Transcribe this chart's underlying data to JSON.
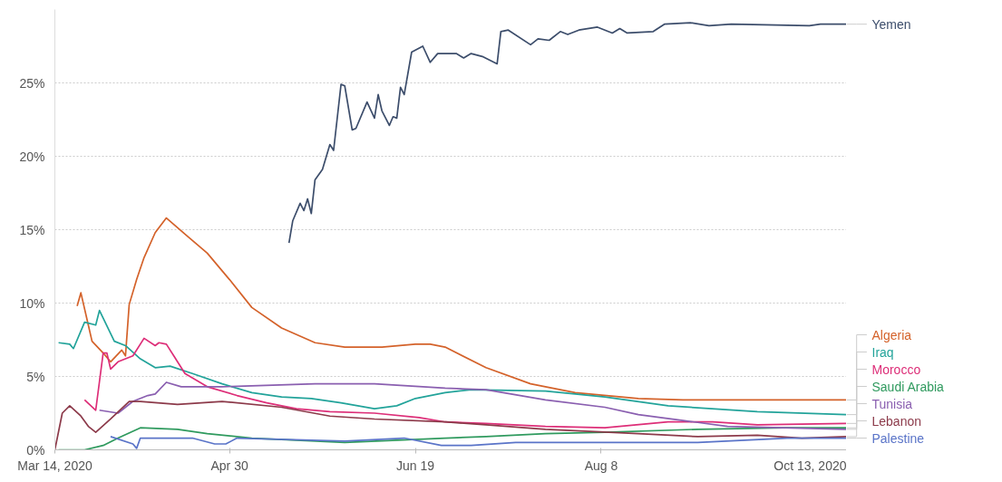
{
  "chart_data": {
    "type": "line",
    "xlim": [
      "2020-03-14",
      "2020-10-13"
    ],
    "xticks": [
      {
        "value": "2020-03-14",
        "label": "Mar 14, 2020"
      },
      {
        "value": "2020-04-30",
        "label": "Apr 30"
      },
      {
        "value": "2020-06-19",
        "label": "Jun 19"
      },
      {
        "value": "2020-08-08",
        "label": "Aug 8"
      },
      {
        "value": "2020-10-13",
        "label": "Oct 13, 2020"
      }
    ],
    "ylim": [
      0,
      30
    ],
    "yticks": [
      {
        "value": 0,
        "label": "0%"
      },
      {
        "value": 5,
        "label": "5%"
      },
      {
        "value": 10,
        "label": "10%"
      },
      {
        "value": 15,
        "label": "15%"
      },
      {
        "value": 20,
        "label": "20%"
      },
      {
        "value": 25,
        "label": "25%"
      }
    ],
    "grid": "y",
    "line_style": "solid",
    "series": [
      {
        "name": "Yemen",
        "color": "#3c4d6b",
        "x": [
          "2020-05-16",
          "2020-05-17",
          "2020-05-19",
          "2020-05-20",
          "2020-05-21",
          "2020-05-22",
          "2020-05-23",
          "2020-05-25",
          "2020-05-27",
          "2020-05-28",
          "2020-05-30",
          "2020-05-31",
          "2020-06-02",
          "2020-06-03",
          "2020-06-06",
          "2020-06-08",
          "2020-06-09",
          "2020-06-10",
          "2020-06-12",
          "2020-06-13",
          "2020-06-14",
          "2020-06-15",
          "2020-06-16",
          "2020-06-18",
          "2020-06-21",
          "2020-06-23",
          "2020-06-25",
          "2020-06-30",
          "2020-07-02",
          "2020-07-04",
          "2020-07-07",
          "2020-07-11",
          "2020-07-12",
          "2020-07-14",
          "2020-07-20",
          "2020-07-22",
          "2020-07-25",
          "2020-07-28",
          "2020-07-30",
          "2020-08-02",
          "2020-08-07",
          "2020-08-11",
          "2020-08-13",
          "2020-08-15",
          "2020-08-22",
          "2020-08-25",
          "2020-09-01",
          "2020-09-06",
          "2020-09-12",
          "2020-10-03",
          "2020-10-06",
          "2020-10-13"
        ],
        "values": [
          14.1,
          15.6,
          16.8,
          16.3,
          17.1,
          16.1,
          18.4,
          19.1,
          20.8,
          20.4,
          24.9,
          24.8,
          21.8,
          21.9,
          23.7,
          22.6,
          24.2,
          23.1,
          22.1,
          22.7,
          22.6,
          24.7,
          24.2,
          27.1,
          27.5,
          26.4,
          27.0,
          27.0,
          26.7,
          27.0,
          26.8,
          26.3,
          28.5,
          28.6,
          27.6,
          28.0,
          27.9,
          28.5,
          28.3,
          28.6,
          28.8,
          28.4,
          28.7,
          28.4,
          28.5,
          29.0,
          29.1,
          28.9,
          29.0,
          28.9,
          29.0,
          29.0
        ]
      },
      {
        "name": "Algeria",
        "color": "#d4622a",
        "x": [
          "2020-03-20",
          "2020-03-21",
          "2020-03-23",
          "2020-03-24",
          "2020-03-27",
          "2020-03-29",
          "2020-04-01",
          "2020-04-02",
          "2020-04-03",
          "2020-04-05",
          "2020-04-07",
          "2020-04-10",
          "2020-04-13",
          "2020-04-18",
          "2020-04-24",
          "2020-04-30",
          "2020-05-06",
          "2020-05-14",
          "2020-05-23",
          "2020-05-31",
          "2020-06-10",
          "2020-06-19",
          "2020-06-23",
          "2020-06-27",
          "2020-07-08",
          "2020-07-20",
          "2020-08-01",
          "2020-08-18",
          "2020-08-30",
          "2020-10-13"
        ],
        "values": [
          9.8,
          10.7,
          8.5,
          7.4,
          6.6,
          6.0,
          6.8,
          6.4,
          9.9,
          11.6,
          13.1,
          14.8,
          15.8,
          14.7,
          13.4,
          11.6,
          9.7,
          8.3,
          7.3,
          7.0,
          7.0,
          7.2,
          7.2,
          7.0,
          5.6,
          4.5,
          3.9,
          3.5,
          3.4,
          3.4
        ]
      },
      {
        "name": "Iraq",
        "color": "#22a39a",
        "x": [
          "2020-03-15",
          "2020-03-18",
          "2020-03-19",
          "2020-03-22",
          "2020-03-25",
          "2020-03-26",
          "2020-03-30",
          "2020-04-02",
          "2020-04-06",
          "2020-04-10",
          "2020-04-14",
          "2020-04-20",
          "2020-04-28",
          "2020-05-06",
          "2020-05-14",
          "2020-05-22",
          "2020-05-30",
          "2020-06-08",
          "2020-06-14",
          "2020-06-19",
          "2020-06-27",
          "2020-07-04",
          "2020-07-24",
          "2020-08-09",
          "2020-08-26",
          "2020-09-19",
          "2020-10-13"
        ],
        "values": [
          7.3,
          7.2,
          6.9,
          8.7,
          8.5,
          9.5,
          7.4,
          7.1,
          6.2,
          5.6,
          5.7,
          5.2,
          4.5,
          3.9,
          3.6,
          3.5,
          3.2,
          2.8,
          3.0,
          3.5,
          3.9,
          4.1,
          4.0,
          3.6,
          3.0,
          2.6,
          2.4
        ]
      },
      {
        "name": "Morocco",
        "color": "#dd2e78",
        "x": [
          "2020-03-22",
          "2020-03-25",
          "2020-03-27",
          "2020-03-28",
          "2020-03-29",
          "2020-03-31",
          "2020-04-04",
          "2020-04-07",
          "2020-04-10",
          "2020-04-11",
          "2020-04-13",
          "2020-04-15",
          "2020-04-18",
          "2020-04-24",
          "2020-05-02",
          "2020-05-10",
          "2020-05-18",
          "2020-05-27",
          "2020-06-08",
          "2020-06-20",
          "2020-06-27",
          "2020-07-08",
          "2020-07-24",
          "2020-08-09",
          "2020-08-26",
          "2020-09-07",
          "2020-09-19",
          "2020-10-13"
        ],
        "values": [
          3.4,
          2.7,
          6.6,
          6.6,
          5.5,
          6.0,
          6.4,
          7.6,
          7.1,
          7.3,
          7.2,
          6.4,
          5.2,
          4.3,
          3.7,
          3.2,
          2.8,
          2.6,
          2.5,
          2.2,
          1.9,
          1.8,
          1.6,
          1.5,
          1.9,
          1.9,
          1.7,
          1.8
        ]
      },
      {
        "name": "Saudi Arabia",
        "color": "#2f9a5e",
        "x": [
          "2020-03-15",
          "2020-03-22",
          "2020-03-27",
          "2020-03-31",
          "2020-04-06",
          "2020-04-16",
          "2020-04-24",
          "2020-05-06",
          "2020-05-31",
          "2020-06-27",
          "2020-07-08",
          "2020-07-24",
          "2020-08-09",
          "2020-09-03",
          "2020-09-27",
          "2020-10-13"
        ],
        "values": [
          0,
          0,
          0.3,
          0.8,
          1.5,
          1.4,
          1.1,
          0.8,
          0.5,
          0.8,
          0.9,
          1.1,
          1.2,
          1.4,
          1.5,
          1.5
        ]
      },
      {
        "name": "Tunisia",
        "color": "#8a5fb0",
        "x": [
          "2020-03-26",
          "2020-03-31",
          "2020-04-04",
          "2020-04-08",
          "2020-04-10",
          "2020-04-13",
          "2020-04-17",
          "2020-04-28",
          "2020-05-23",
          "2020-06-08",
          "2020-06-27",
          "2020-07-08",
          "2020-07-24",
          "2020-08-09",
          "2020-08-18",
          "2020-08-30",
          "2020-09-11",
          "2020-10-13"
        ],
        "values": [
          2.7,
          2.5,
          3.3,
          3.7,
          3.8,
          4.6,
          4.3,
          4.3,
          4.5,
          4.5,
          4.2,
          4.1,
          3.4,
          2.9,
          2.4,
          2.0,
          1.6,
          1.4
        ]
      },
      {
        "name": "Lebanon",
        "color": "#8c3a4a",
        "x": [
          "2020-03-14",
          "2020-03-16",
          "2020-03-18",
          "2020-03-21",
          "2020-03-23",
          "2020-03-25",
          "2020-03-29",
          "2020-04-03",
          "2020-04-06",
          "2020-04-16",
          "2020-04-28",
          "2020-05-14",
          "2020-05-27",
          "2020-06-08",
          "2020-06-27",
          "2020-07-08",
          "2020-07-24",
          "2020-08-18",
          "2020-09-03",
          "2020-09-19",
          "2020-10-01",
          "2020-10-13"
        ],
        "values": [
          0,
          2.5,
          3.0,
          2.3,
          1.6,
          1.2,
          2.1,
          3.3,
          3.3,
          3.1,
          3.3,
          2.9,
          2.3,
          2.1,
          1.9,
          1.7,
          1.4,
          1.1,
          0.9,
          1.0,
          0.8,
          0.9
        ]
      },
      {
        "name": "Palestine",
        "color": "#5a74c8",
        "x": [
          "2020-03-29",
          "2020-04-04",
          "2020-04-05",
          "2020-04-06",
          "2020-04-20",
          "2020-04-26",
          "2020-04-29",
          "2020-05-02",
          "2020-05-31",
          "2020-06-16",
          "2020-06-26",
          "2020-07-04",
          "2020-07-16",
          "2020-07-28",
          "2020-08-18",
          "2020-09-03",
          "2020-09-27",
          "2020-10-13"
        ],
        "values": [
          0.9,
          0.4,
          0.1,
          0.8,
          0.8,
          0.4,
          0.4,
          0.8,
          0.6,
          0.8,
          0.3,
          0.3,
          0.5,
          0.5,
          0.5,
          0.5,
          0.8,
          0.8
        ]
      }
    ]
  }
}
